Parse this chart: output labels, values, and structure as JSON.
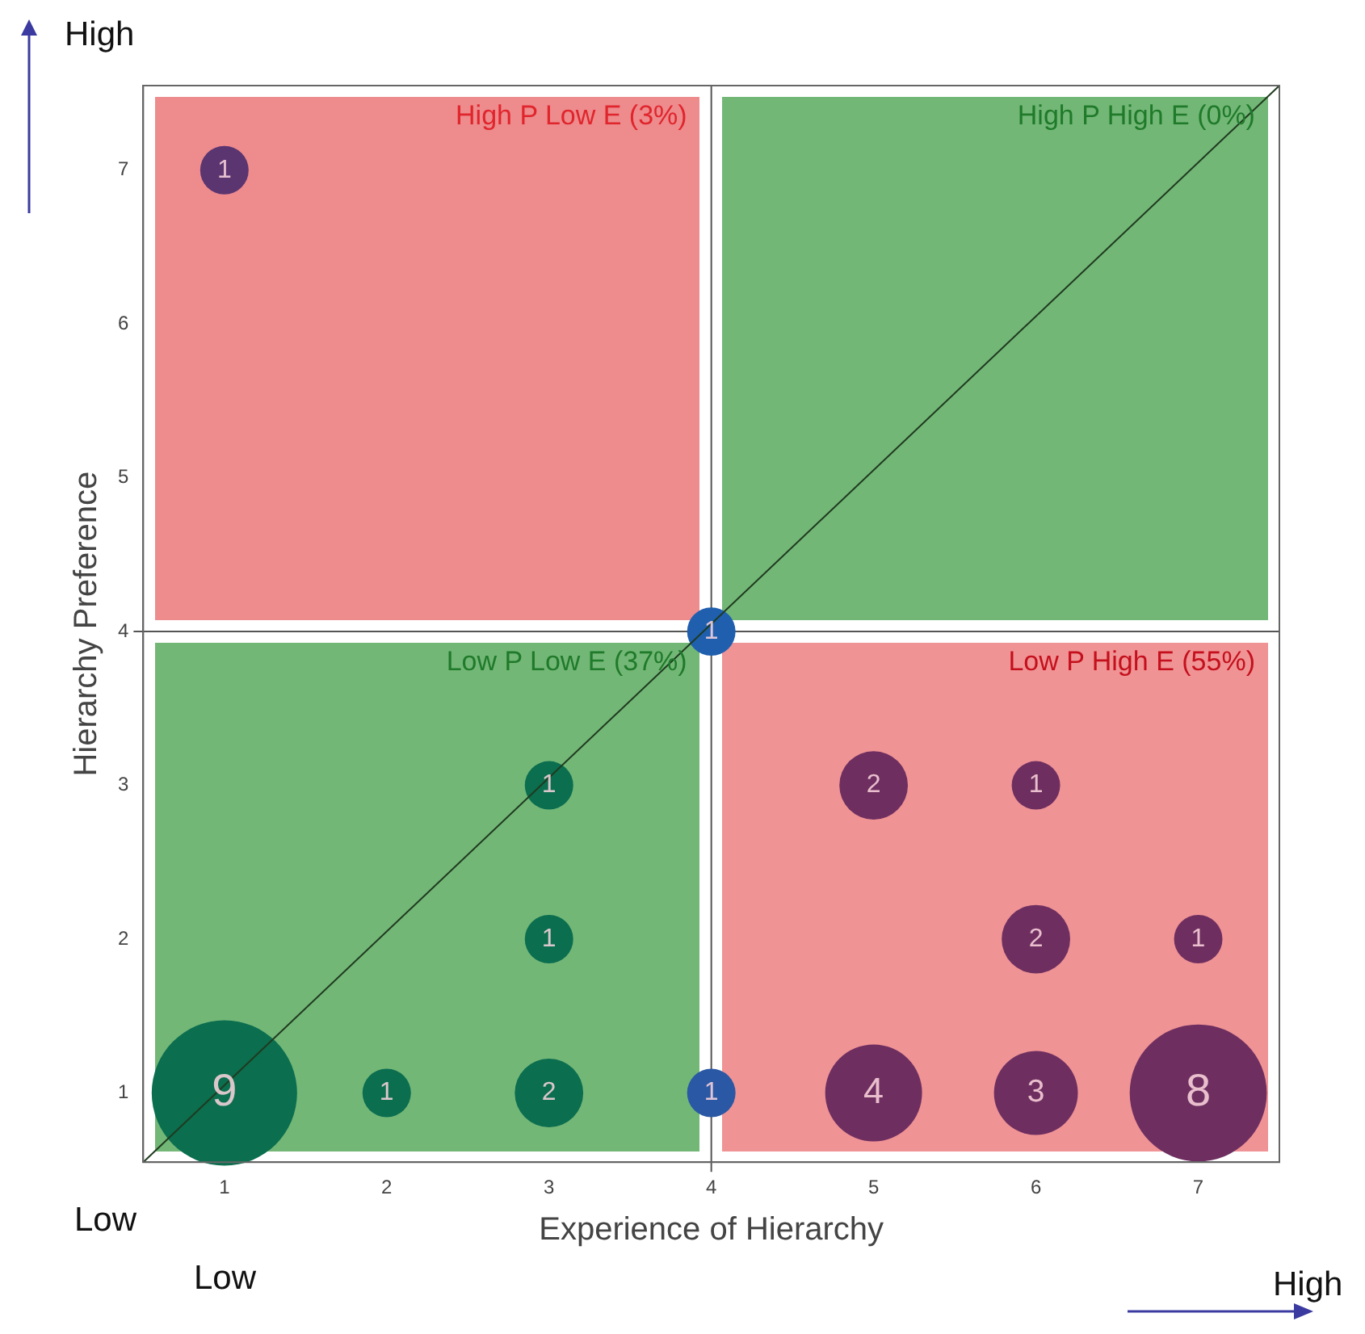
{
  "chart_data": {
    "type": "bubble",
    "xlabel": "Experience of Hierarchy",
    "ylabel": "Hierarchy Preference",
    "xlim": [
      0.5,
      7.5
    ],
    "ylim": [
      0.55,
      7.55
    ],
    "xticks": [
      1,
      2,
      3,
      4,
      5,
      6,
      7
    ],
    "yticks": [
      1,
      2,
      3,
      4,
      5,
      6,
      7
    ],
    "grid": false,
    "legend": false,
    "marker": "circle",
    "series": [
      {
        "type": "bubble",
        "x": [
          1,
          4,
          3,
          3,
          1,
          2,
          3,
          4,
          5,
          6,
          6,
          7,
          5,
          6,
          7
        ],
        "values": [
          7,
          4,
          3,
          2,
          1,
          1,
          1,
          1,
          3,
          3,
          2,
          2,
          1,
          1,
          1
        ],
        "sizes": [
          0.111,
          0.111,
          0.111,
          0.111,
          1,
          0.111,
          0.222,
          0.111,
          0.222,
          0.111,
          0.222,
          0.111,
          0.444,
          0.333,
          0.889
        ],
        "colors": [
          "#5a3570",
          "#1f5fae",
          "#0b6e4f",
          "#0b6e4f",
          "#0b6e4f",
          "#0b6e4f",
          "#0b6e4f",
          "#2a58a4",
          "#6e2f60",
          "#6e2f60",
          "#6e2f60",
          "#6e2f60",
          "#6e2f60",
          "#6e2f60",
          "#6e2f60"
        ]
      },
      {
        "type": "line",
        "x": [
          0.5,
          7.5
        ],
        "values": [
          0.55,
          7.55
        ],
        "color": "#1f3a1f",
        "marker": "none",
        "line_style": "solid"
      }
    ],
    "ref_lines": [
      {
        "axis": "x",
        "value": 4,
        "color": "#555555"
      },
      {
        "axis": "y",
        "value": 4,
        "color": "#555555"
      }
    ],
    "annotations": [
      "High P Low E (3%)",
      "High P High E (0%)",
      "Low P Low E (37%)",
      "Low P High E (55%)",
      "High",
      "Low",
      "Low",
      "High",
      {
        "text": "1",
        "x": 1,
        "y": 7
      },
      {
        "text": "1",
        "x": 4,
        "y": 4
      },
      {
        "text": "1",
        "x": 3,
        "y": 3
      },
      {
        "text": "1",
        "x": 3,
        "y": 2
      },
      {
        "text": "9",
        "x": 1,
        "y": 1
      },
      {
        "text": "1",
        "x": 2,
        "y": 1
      },
      {
        "text": "2",
        "x": 3,
        "y": 1
      },
      {
        "text": "1",
        "x": 4,
        "y": 1
      },
      {
        "text": "2",
        "x": 5,
        "y": 3
      },
      {
        "text": "1",
        "x": 6,
        "y": 3
      },
      {
        "text": "2",
        "x": 6,
        "y": 2
      },
      {
        "text": "1",
        "x": 7,
        "y": 2
      },
      {
        "text": "4",
        "x": 5,
        "y": 1
      },
      {
        "text": "3",
        "x": 6,
        "y": 1
      },
      {
        "text": "8",
        "x": 7,
        "y": 1
      }
    ]
  }
}
